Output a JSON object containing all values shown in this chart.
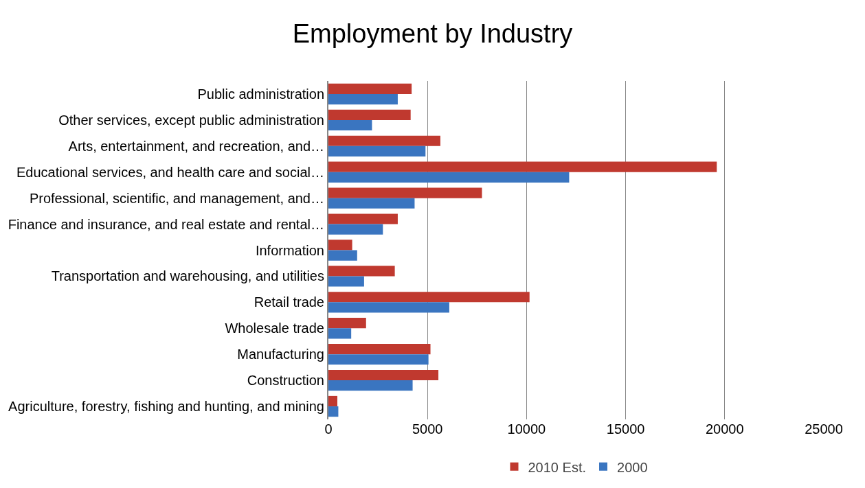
{
  "chart_data": {
    "type": "bar",
    "orientation": "horizontal",
    "title": "Employment by Industry",
    "categories": [
      "Public administration",
      "Other services, except public administration",
      "Arts, entertainment, and recreation, and…",
      "Educational services, and health care and social…",
      "Professional, scientific, and management, and…",
      "Finance and insurance, and real estate and rental…",
      "Information",
      "Transportation and warehousing, and utilities",
      "Retail trade",
      "Wholesale trade",
      "Manufacturing",
      "Construction",
      "Agriculture, forestry, fishing and hunting, and mining"
    ],
    "series": [
      {
        "name": "2010 Est.",
        "color": "#c0392f",
        "values": [
          4200,
          4150,
          5650,
          19600,
          7750,
          3500,
          1200,
          3350,
          10150,
          1900,
          5150,
          5550,
          450
        ]
      },
      {
        "name": "2000",
        "color": "#3a75c0",
        "values": [
          3500,
          2200,
          4900,
          12150,
          4350,
          2750,
          1450,
          1800,
          6100,
          1150,
          5050,
          4250,
          500
        ]
      }
    ],
    "xlim": [
      0,
      25000
    ],
    "xticks": [
      0,
      5000,
      10000,
      15000,
      20000,
      25000
    ],
    "grid": "x",
    "legend": "bottom"
  }
}
